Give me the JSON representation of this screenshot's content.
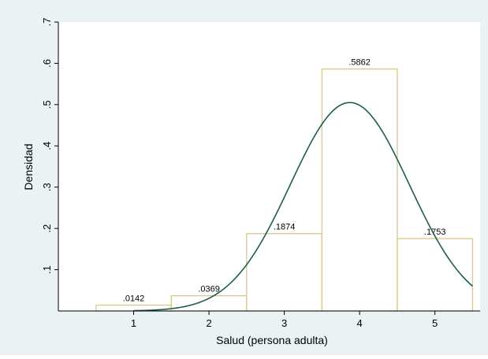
{
  "chart_data": {
    "type": "bar",
    "title": "",
    "xlabel": "Salud (persona adulta)",
    "ylabel": "Densidad",
    "xlim": [
      0,
      5.6
    ],
    "ylim": [
      0,
      0.7
    ],
    "x_ticks": [
      1,
      2,
      3,
      4,
      5
    ],
    "x_tick_labels": [
      "1",
      "2",
      "3",
      "4",
      "5"
    ],
    "y_ticks": [
      0.1,
      0.2,
      0.3,
      0.4,
      0.5,
      0.6,
      0.7
    ],
    "y_tick_labels": [
      ".1",
      ".2",
      ".3",
      ".4",
      ".5",
      ".6",
      ".7"
    ],
    "grid": false,
    "legend": "none",
    "categories": [
      "1",
      "2",
      "3",
      "4",
      "5"
    ],
    "bars": [
      {
        "x": 1,
        "value": 0.0142,
        "label": ".0142"
      },
      {
        "x": 2,
        "value": 0.0369,
        "label": ".0369"
      },
      {
        "x": 3,
        "value": 0.1874,
        "label": ".1874"
      },
      {
        "x": 4,
        "value": 0.5862,
        "label": ".5862"
      },
      {
        "x": 5,
        "value": 0.1753,
        "label": ".1753"
      }
    ],
    "bar_width": 1,
    "overlay_curve": {
      "type": "normal",
      "mean": 3.87,
      "sd": 0.79,
      "x_range": [
        1,
        5.5
      ]
    },
    "colors": {
      "outer_background": "#eaf2f3",
      "plot_background": "#ffffff",
      "bar_outline": "#d7c98a",
      "curve": "#1f5c4c",
      "axis": "#000000"
    }
  }
}
